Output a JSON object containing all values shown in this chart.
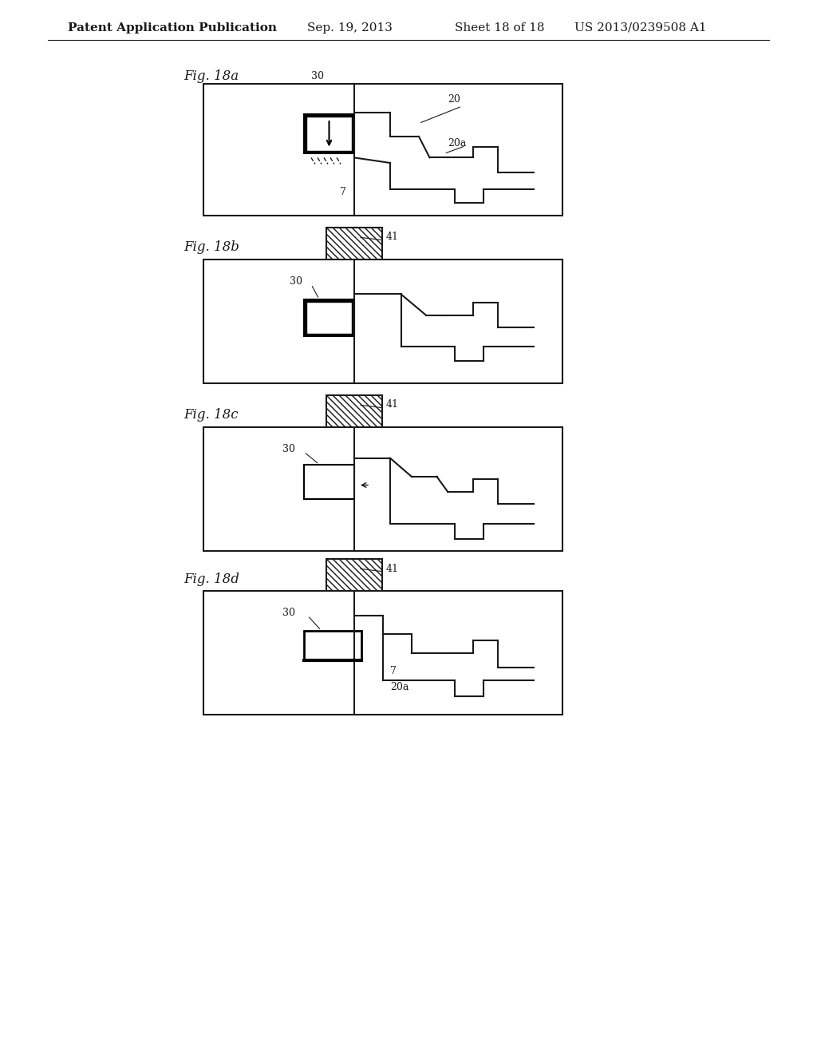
{
  "title": "Patent Application Publication",
  "date": "Sep. 19, 2013",
  "sheet": "Sheet 18 of 18",
  "patent_num": "US 2013/0239508 A1",
  "fig_labels": [
    "Fig. 18a",
    "Fig. 18b",
    "Fig. 18c",
    "Fig. 18d"
  ],
  "bg_color": "#ffffff",
  "line_color": "#1a1a1a",
  "header_fontsize": 11,
  "fig_label_fontsize": 12
}
